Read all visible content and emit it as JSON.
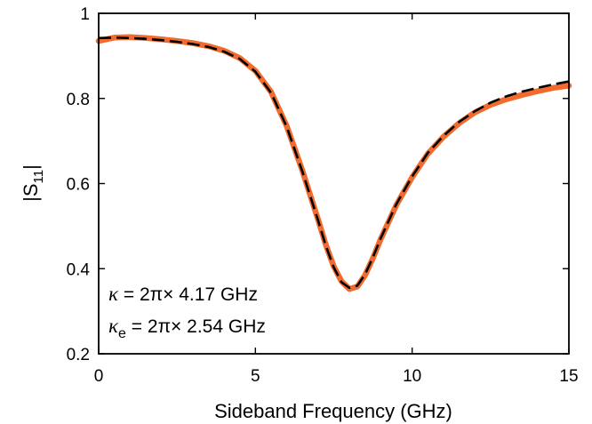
{
  "chart_data": {
    "type": "line",
    "xlabel": "Sideband Frequency (GHz)",
    "ylabel_main": "|S",
    "ylabel_sub": "11",
    "ylabel_close": "|",
    "xlim": [
      0,
      15
    ],
    "ylim": [
      0.2,
      1.0
    ],
    "x_ticks": [
      0,
      5,
      10,
      15
    ],
    "x_tick_labels": [
      "0",
      "5",
      "10",
      "15"
    ],
    "y_ticks": [
      0.2,
      0.4,
      0.6,
      0.8,
      1.0
    ],
    "y_tick_labels": [
      "0.2",
      "0.4",
      "0.6",
      "0.8",
      "1"
    ],
    "grid": false,
    "colors": {
      "measured": "#f26b2e",
      "fit": "#000000"
    },
    "series": [
      {
        "style": "solid",
        "color": "#f26b2e",
        "x": [
          0,
          0.5,
          1,
          1.5,
          2,
          2.5,
          3,
          3.5,
          4,
          4.5,
          5,
          5.5,
          6,
          6.5,
          7,
          7.25,
          7.5,
          7.75,
          8,
          8.25,
          8.5,
          8.75,
          9,
          9.5,
          10,
          10.5,
          11,
          11.5,
          12,
          12.5,
          13,
          13.5,
          14,
          14.5,
          15
        ],
        "y": [
          0.935,
          0.943,
          0.944,
          0.942,
          0.939,
          0.935,
          0.93,
          0.923,
          0.912,
          0.895,
          0.865,
          0.815,
          0.735,
          0.63,
          0.515,
          0.455,
          0.405,
          0.37,
          0.352,
          0.358,
          0.385,
          0.425,
          0.47,
          0.55,
          0.615,
          0.67,
          0.71,
          0.742,
          0.767,
          0.785,
          0.798,
          0.808,
          0.817,
          0.825,
          0.83
        ]
      },
      {
        "style": "dashed",
        "color": "#000000",
        "x": [
          0,
          0.5,
          1,
          1.5,
          2,
          2.5,
          3,
          3.5,
          4,
          4.5,
          5,
          5.5,
          6,
          6.5,
          7,
          7.25,
          7.5,
          7.75,
          8,
          8.25,
          8.5,
          8.75,
          9,
          9.5,
          10,
          10.5,
          11,
          11.5,
          12,
          12.5,
          13,
          13.5,
          14,
          14.5,
          15
        ],
        "y": [
          0.942,
          0.943,
          0.942,
          0.94,
          0.937,
          0.933,
          0.928,
          0.921,
          0.91,
          0.893,
          0.863,
          0.813,
          0.733,
          0.628,
          0.513,
          0.453,
          0.403,
          0.368,
          0.355,
          0.36,
          0.387,
          0.427,
          0.472,
          0.552,
          0.617,
          0.672,
          0.712,
          0.745,
          0.77,
          0.79,
          0.805,
          0.816,
          0.825,
          0.833,
          0.84
        ]
      }
    ],
    "annotations": [
      {
        "symbol": "κ",
        "sub": "",
        "text": " = 2π× 4.17 GHz"
      },
      {
        "symbol": "κ",
        "sub": "e",
        "text": " = 2π× 2.54 GHz"
      }
    ]
  }
}
